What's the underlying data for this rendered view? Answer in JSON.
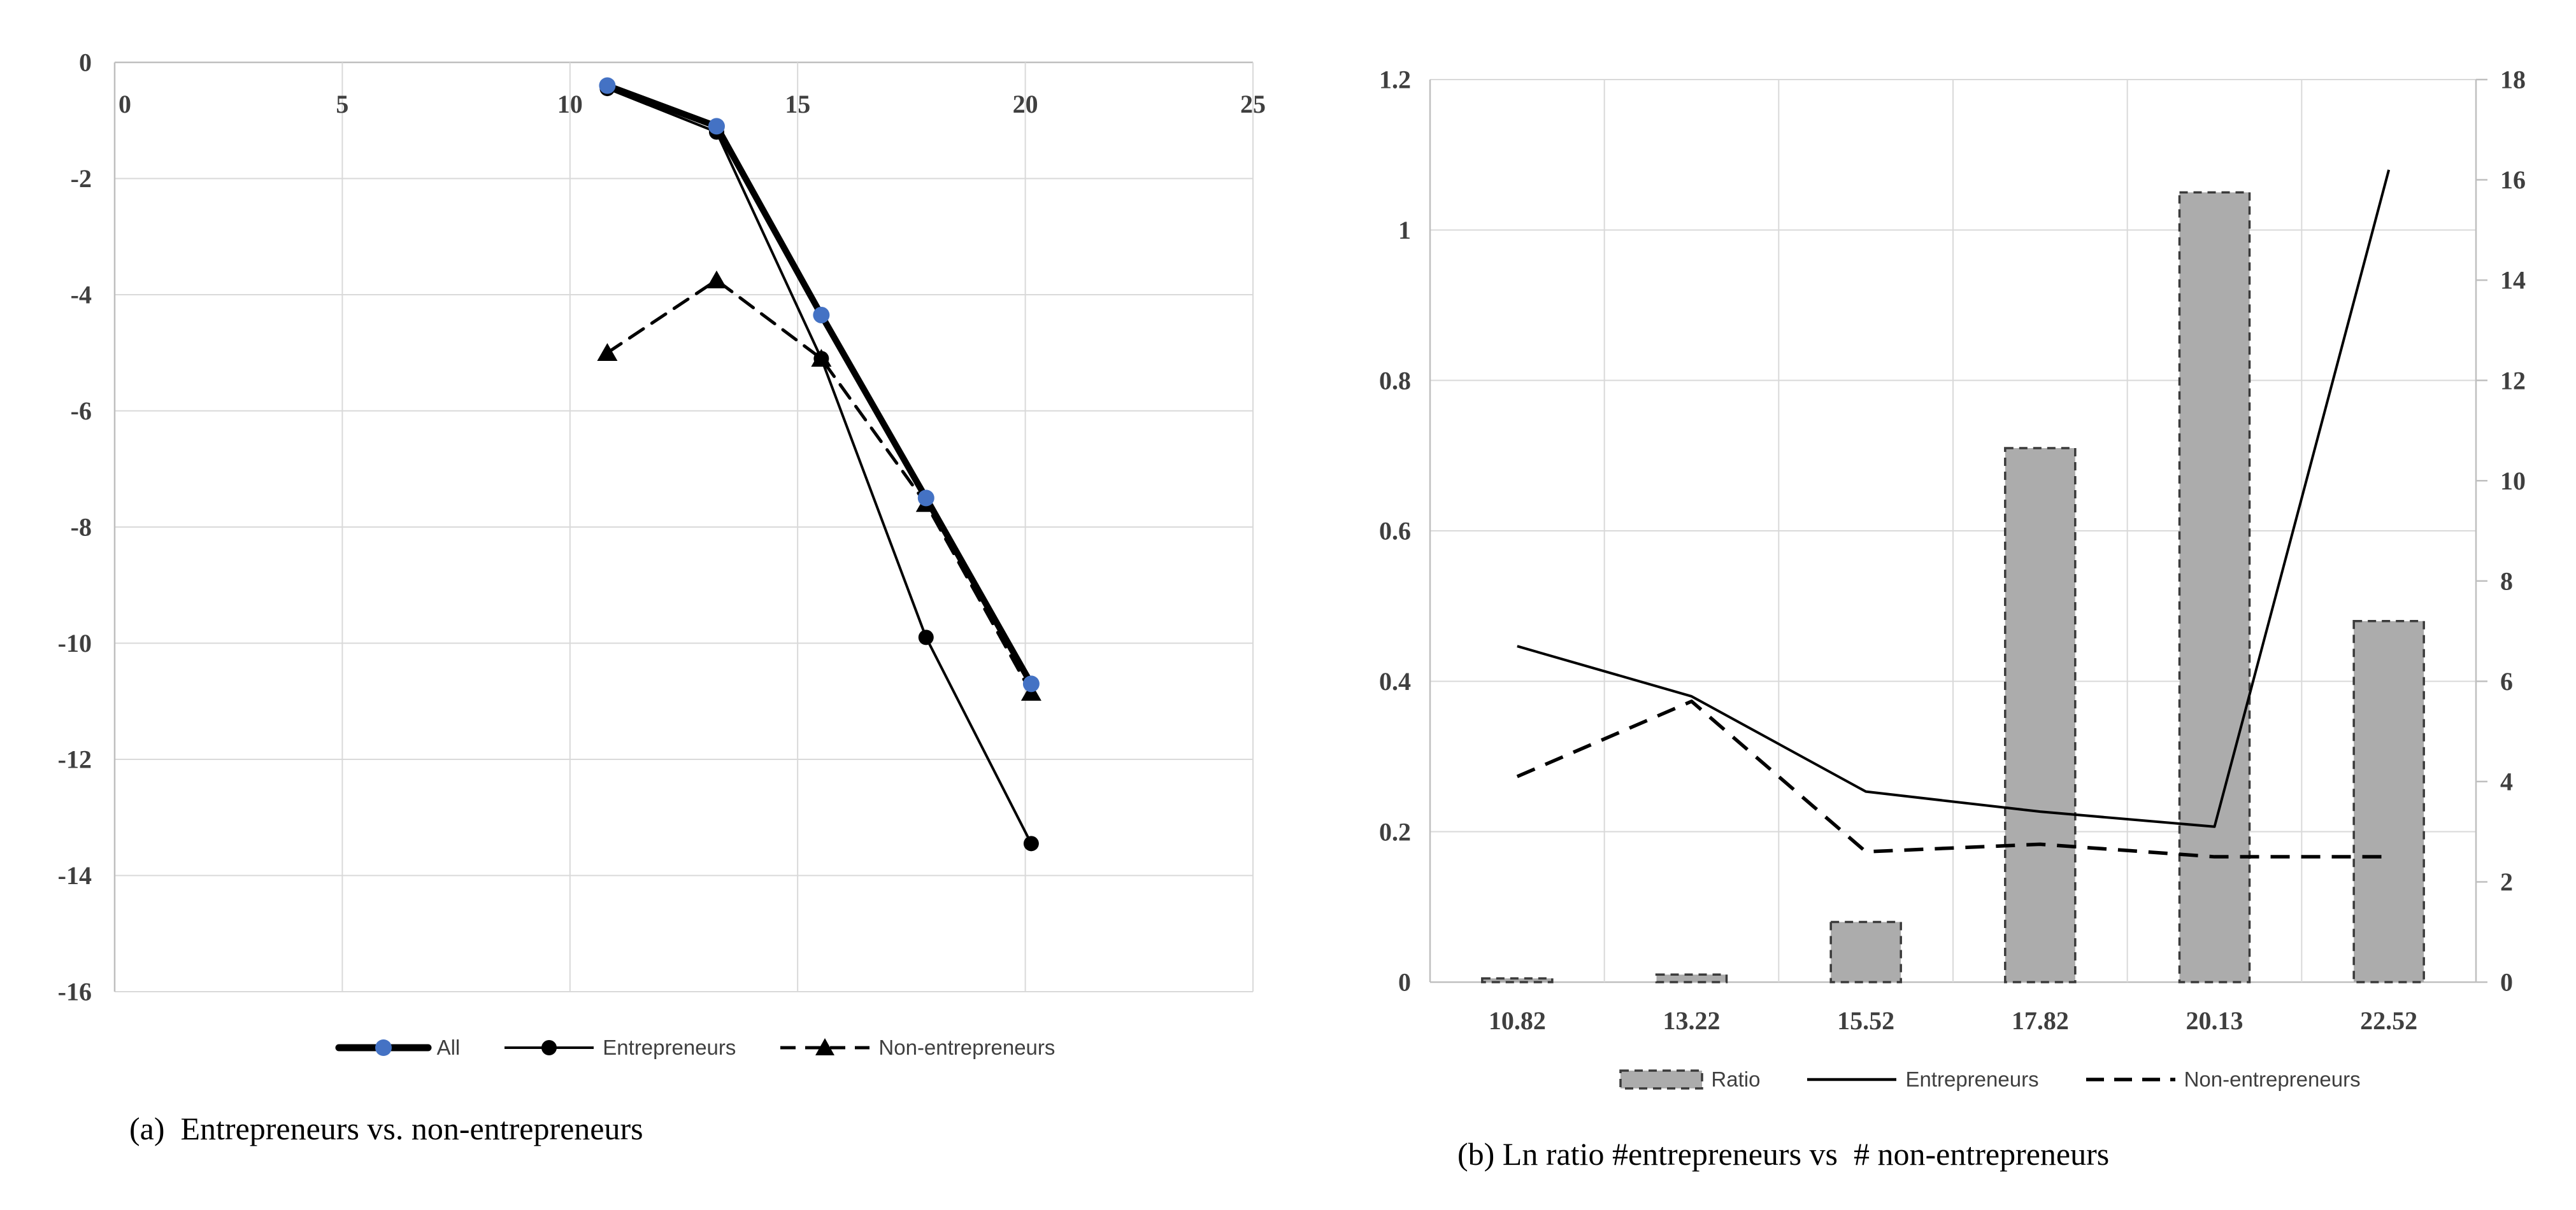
{
  "page": {
    "background": "#ffffff"
  },
  "colors": {
    "accent_blue": "#4472C4",
    "series_black": "#000000",
    "bar_fill": "#ACACAC",
    "bar_border": "#3A3A3A",
    "gridline": "#D9D9D9",
    "axis_line": "#BFBFBF",
    "tick_text": "#3F3F3F",
    "legend_text": "#3F3F3F",
    "caption_text": "#000000"
  },
  "figures": {
    "left": {
      "caption": "(a)  Entrepreneurs vs. non-entrepreneurs",
      "legend": [
        {
          "label": "All"
        },
        {
          "label": "Entrepreneurs"
        },
        {
          "label": "Non-entrepreneurs"
        }
      ]
    },
    "right": {
      "caption": "(b) Ln ratio #entrepreneurs vs  # non-entrepreneurs",
      "legend": [
        {
          "label": "Ratio"
        },
        {
          "label": "Entrepreneurs"
        },
        {
          "label": "Non-entrepreneurs"
        }
      ]
    }
  },
  "chart_data": [
    {
      "id": "chart-a",
      "type": "line",
      "title": "(a) Entrepreneurs vs. non-entrepreneurs",
      "xlabel": "",
      "ylabel": "",
      "xlim": [
        0,
        25
      ],
      "ylim": [
        -16,
        0
      ],
      "grid": true,
      "legend_position": "bottom",
      "x_tick_values": [
        0,
        5,
        10,
        15,
        20,
        25
      ],
      "x_tick_labels": [
        "0",
        "5",
        "10",
        "15",
        "20",
        "25"
      ],
      "y_tick_values": [
        0,
        -2,
        -4,
        -6,
        -8,
        -10,
        -12,
        -14,
        -16
      ],
      "y_tick_labels": [
        "0",
        "-2",
        "-4",
        "-6",
        "-8",
        "-10",
        "-12",
        "-14",
        "-16"
      ],
      "x": [
        10.82,
        13.22,
        15.52,
        17.82,
        20.13
      ],
      "series": [
        {
          "name": "All",
          "values": [
            -0.4,
            -1.1,
            -4.35,
            -7.5,
            -10.7
          ],
          "line": "solid",
          "line_width": 10,
          "marker": "circle",
          "marker_size": 13,
          "marker_color": "#4472C4",
          "color": "#000000"
        },
        {
          "name": "Entrepreneurs",
          "values": [
            -0.45,
            -1.2,
            -5.1,
            -9.9,
            -13.45
          ],
          "line": "solid",
          "line_width": 4,
          "marker": "circle",
          "marker_size": 12,
          "marker_color": "#000000",
          "color": "#000000"
        },
        {
          "name": "Non-entrepreneurs",
          "values": [
            -5.0,
            -3.75,
            -5.1,
            -7.6,
            -10.85
          ],
          "line": "dashed",
          "line_width": 5,
          "marker": "triangle",
          "marker_size": 16,
          "marker_color": "#000000",
          "color": "#000000"
        }
      ]
    },
    {
      "id": "chart-b",
      "type": "combo-bar-line",
      "title": "(b) Ln ratio #entrepreneurs vs # non-entrepreneurs",
      "xlabel": "",
      "grid": true,
      "legend_position": "bottom",
      "categories": [
        "10.82",
        "13.22",
        "15.52",
        "17.82",
        "20.13",
        "22.52"
      ],
      "left_axis": {
        "range": [
          0,
          1.2
        ],
        "tick_values": [
          0,
          0.2,
          0.4,
          0.6,
          0.8,
          1,
          1.2
        ],
        "tick_labels": [
          "0",
          "0.2",
          "0.4",
          "0.6",
          "0.8",
          "1",
          "1.2"
        ]
      },
      "right_axis": {
        "range": [
          0,
          18
        ],
        "tick_values": [
          0,
          2,
          4,
          6,
          8,
          10,
          12,
          14,
          16,
          18
        ],
        "tick_labels": [
          "0",
          "2",
          "4",
          "6",
          "8",
          "10",
          "12",
          "14",
          "16",
          "18"
        ]
      },
      "bars": {
        "name": "Ratio",
        "axis": "left",
        "values": [
          0.005,
          0.01,
          0.08,
          0.71,
          1.05,
          0.48
        ],
        "fill": "#ACACAC",
        "border": "#3A3A3A"
      },
      "lines": [
        {
          "name": "Entrepreneurs",
          "axis": "right",
          "values": [
            6.7,
            5.7,
            3.8,
            3.4,
            3.1,
            16.2
          ],
          "line": "solid",
          "line_width": 4,
          "color": "#000000"
        },
        {
          "name": "Non-entrepreneurs",
          "axis": "right",
          "values": [
            4.1,
            5.6,
            2.6,
            2.75,
            2.5,
            2.5
          ],
          "line": "dashed",
          "line_width": 5.5,
          "color": "#000000"
        }
      ]
    }
  ]
}
